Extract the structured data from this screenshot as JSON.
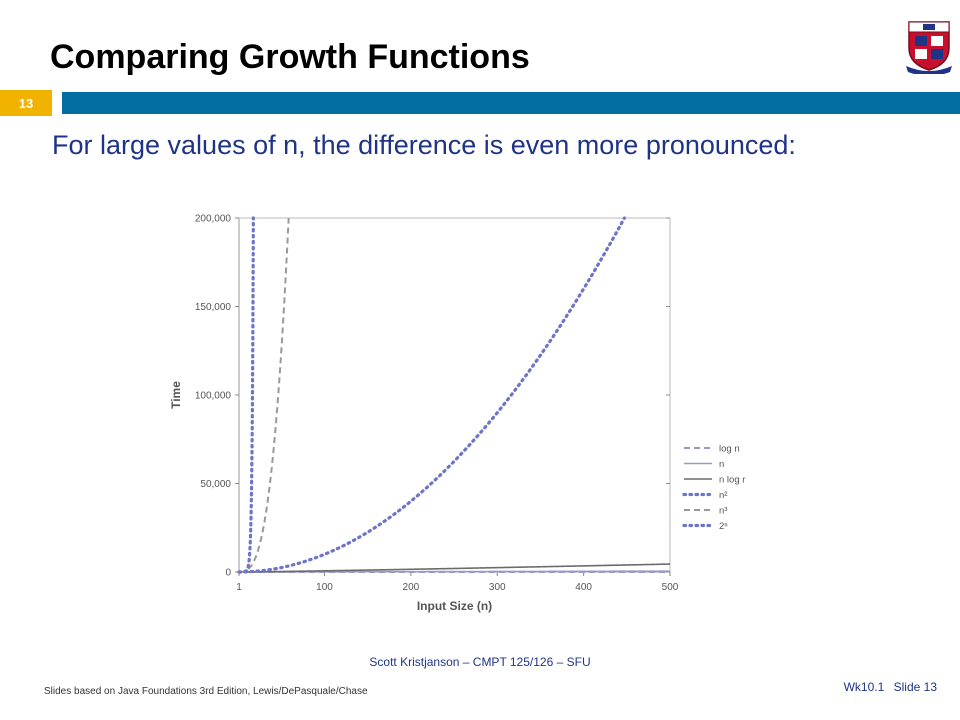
{
  "slide": {
    "title": "Comparing Growth Functions",
    "number_badge": "13",
    "subtitle": "For large values of n, the difference is even more pronounced:",
    "footer_center": "Scott Kristjanson – CMPT 125/126 – SFU",
    "footer_left": "Slides based on Java Foundations 3rd Edition, Lewis/DePasquale/Chase",
    "footer_week": "Wk10.1",
    "footer_slide": "Slide 13"
  },
  "colors": {
    "title_bar": "#036ea1",
    "badge": "#f2b200",
    "subtitle_text": "#1f3487",
    "series_gray": "#999999",
    "series_purple": "#6f74c6",
    "series_darkgray": "#6b6b6b"
  },
  "chart_data": {
    "type": "line",
    "title": "",
    "xlabel": "Input Size (n)",
    "ylabel": "Time",
    "xlim": [
      1,
      500
    ],
    "ylim": [
      0,
      200000
    ],
    "x_ticks": [
      1,
      100,
      200,
      300,
      400,
      500
    ],
    "x_tick_labels": [
      "1",
      "100",
      "200",
      "300",
      "400",
      "500"
    ],
    "y_ticks": [
      0,
      50000,
      100000,
      150000,
      200000
    ],
    "y_tick_labels": [
      "0",
      "50,000",
      "100,000",
      "150,000",
      "200,000"
    ],
    "grid": false,
    "legend_position": "right",
    "series": [
      {
        "name": "log n",
        "function": "log2",
        "style": "dashed",
        "color": "#9a9ac8"
      },
      {
        "name": "n",
        "function": "linear",
        "style": "solid",
        "color": "#9a9ac8"
      },
      {
        "name": "n log r",
        "function": "nlog2n",
        "style": "solid",
        "color": "#6b6b6b"
      },
      {
        "name": "n²",
        "function": "square",
        "style": "dotted",
        "color": "#6f74c6"
      },
      {
        "name": "n³",
        "function": "cube",
        "style": "dashed",
        "color": "#999999"
      },
      {
        "name": "2ⁿ",
        "function": "exp2",
        "style": "dotted",
        "color": "#6f74c6"
      }
    ]
  }
}
